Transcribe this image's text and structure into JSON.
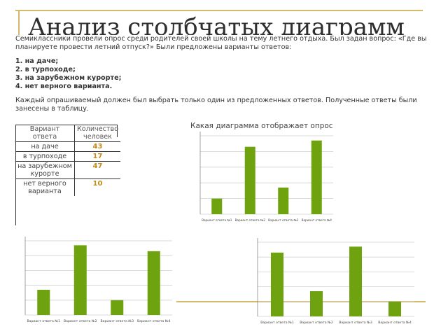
{
  "page": {
    "title": "Анализ столбчатых диаграмм",
    "intro": "Семиклассники провели опрос среди родителей своей школы на тему летнего отдыха. Был задан вопрос: «Где вы планируете провести летний отпуск?» Были предложены варианты ответов:",
    "options": [
      "1. на даче;",
      "2. в турпоходе;",
      "3. на зарубежном курорте;",
      "4. нет верного варианта."
    ],
    "note": "Каждый опрашиваемый должен был выбрать только один из предложенных ответов. Полученные ответы были занесены в таблицу.",
    "question": "Какая диаграмма отображает опрос"
  },
  "table": {
    "headers": [
      "Вариант ответа",
      "Количество человек"
    ],
    "rows": [
      {
        "label": "на даче",
        "value": "43"
      },
      {
        "label": "в турпоходе",
        "value": "17"
      },
      {
        "label": "на зарубежном курорте",
        "value": "47"
      },
      {
        "label": "нет верного варианта",
        "value": "10"
      }
    ]
  },
  "colors": {
    "bar": "#6ea30f",
    "grid": "#cfcfcf",
    "frame": "#d4b96a"
  },
  "chart_data": [
    {
      "type": "bar",
      "categories": [
        "Вариант ответа №1",
        "Вариант ответа №2",
        "Вариант ответа №3",
        "Вариант ответа №4"
      ],
      "values": [
        10,
        43,
        17,
        47
      ],
      "ylim": [
        0,
        50
      ],
      "grid": true
    },
    {
      "type": "bar",
      "categories": [
        "Вариант ответа №1",
        "Вариант ответа №2",
        "Вариант ответа №3",
        "Вариант ответа №4"
      ],
      "values": [
        17,
        47,
        10,
        43
      ],
      "ylim": [
        0,
        50
      ],
      "grid": true
    },
    {
      "type": "bar",
      "categories": [
        "Вариант ответа №1",
        "Вариант ответа №2",
        "Вариант ответа №3",
        "Вариант ответа №4"
      ],
      "values": [
        43,
        17,
        47,
        10
      ],
      "ylim": [
        0,
        50
      ],
      "grid": true
    }
  ]
}
